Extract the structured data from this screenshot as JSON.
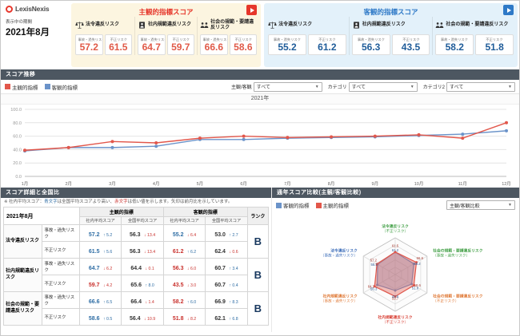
{
  "header": {
    "logo_text": "LexisNexis",
    "period_label": "表示中の期間",
    "period_value": "2021年8月"
  },
  "panels": {
    "subjective": {
      "title": "主観的指標スコア",
      "accent": "#e6362a",
      "bg": "#fcf5e0",
      "value_color": "#e05a48",
      "categories": [
        {
          "name": "法令違反リスク",
          "icon": "scale-icon",
          "scores": [
            {
              "label": "事故・過失リスク",
              "value": "57.2"
            },
            {
              "label": "不正リスク",
              "value": "61.5"
            }
          ]
        },
        {
          "name": "社内規範違反リスク",
          "icon": "id-badge-icon",
          "scores": [
            {
              "label": "事故・過失リスク",
              "value": "64.7"
            },
            {
              "label": "不正リスク",
              "value": "59.7"
            }
          ]
        },
        {
          "name": "社会の規範・要請違反リスク",
          "icon": "people-icon",
          "scores": [
            {
              "label": "事故・過失リスク",
              "value": "66.6"
            },
            {
              "label": "不正リスク",
              "value": "58.6"
            }
          ]
        }
      ]
    },
    "objective": {
      "title": "客観的指標スコア",
      "accent": "#2e79c7",
      "bg": "#e3f1fa",
      "value_color": "#1f5c99",
      "categories": [
        {
          "name": "法令違反リスク",
          "icon": "scale-icon",
          "scores": [
            {
              "label": "事故・過失リスク",
              "value": "55.2"
            },
            {
              "label": "不正リスク",
              "value": "61.2"
            }
          ]
        },
        {
          "name": "社内規範違反リスク",
          "icon": "id-badge-icon",
          "scores": [
            {
              "label": "事故・過失リスク",
              "value": "56.3"
            },
            {
              "label": "不正リスク",
              "value": "43.5"
            }
          ]
        },
        {
          "name": "社会の規範・要請違反リスク",
          "icon": "people-icon",
          "scores": [
            {
              "label": "事故・過失リスク",
              "value": "58.2"
            },
            {
              "label": "不正リスク",
              "value": "51.8"
            }
          ]
        }
      ]
    }
  },
  "trend": {
    "title": "スコア推移",
    "legend": [
      {
        "label": "主観的指標",
        "color": "#e2574b"
      },
      {
        "label": "客観的指標",
        "color": "#6b93c9"
      }
    ],
    "filters": [
      {
        "label": "主観/客観",
        "value": "すべて"
      },
      {
        "label": "カテゴリ",
        "value": "すべて"
      },
      {
        "label": "カテゴリ2",
        "value": "すべて"
      }
    ]
  },
  "chart_data": [
    {
      "type": "line",
      "title": "2021年",
      "categories": [
        "1月",
        "2月",
        "3月",
        "4月",
        "5月",
        "6月",
        "7月",
        "8月",
        "9月",
        "10月",
        "11月",
        "12月"
      ],
      "series": [
        {
          "name": "主観的指標",
          "color": "#e2574b",
          "values": [
            39,
            43,
            52,
            50,
            57,
            60,
            58,
            59,
            60,
            62,
            57,
            80
          ]
        },
        {
          "name": "客観的指標",
          "color": "#6b93c9",
          "values": [
            38,
            43,
            43,
            45,
            55,
            55,
            57,
            58,
            59,
            61,
            63,
            68
          ]
        }
      ],
      "ylim": [
        0,
        100
      ],
      "yticks": [
        0,
        20,
        40,
        60,
        80,
        100
      ],
      "xlabel": "",
      "ylabel": ""
    },
    {
      "type": "radar",
      "max": 100,
      "axes": [
        {
          "name": "法令違反リスク",
          "metric": "（不正リスク）",
          "color": "#43a047"
        },
        {
          "name": "社会の規範・要請違反リスク",
          "metric": "（事故・過失リスク）",
          "color": "#43a047"
        },
        {
          "name": "社会の規範・要請違反リスク",
          "metric": "（不正リスク）",
          "color": "#e07b39"
        },
        {
          "name": "社内規範違反リスク",
          "metric": "（不正リスク）",
          "color": "#d9453a"
        },
        {
          "name": "社内規範違反リスク",
          "metric": "（事故・過失リスク）",
          "color": "#e07b39"
        },
        {
          "name": "法令違反リスク",
          "metric": "（事故・過失リスク）",
          "color": "#3f6fba"
        }
      ],
      "series": [
        {
          "name": "主観的指標",
          "color": "#e2574b",
          "values": [
            61.5,
            66.6,
            58.6,
            59.7,
            64.7,
            57.2
          ]
        },
        {
          "name": "客観的指標",
          "color": "#6b93c9",
          "values": [
            61.2,
            58.2,
            51.8,
            43.5,
            56.3,
            55.2
          ]
        }
      ]
    }
  ],
  "details": {
    "title": "スコア詳細と全国比",
    "month": "2021年8月",
    "group_headers": [
      "主観的指標",
      "客観的指標"
    ],
    "sub_headers": [
      "社内平均スコア",
      "全国平均スコア",
      "社内平均スコア",
      "全国平均スコア"
    ],
    "rank_header": "ランク",
    "note_parts": [
      {
        "t": "※ 社内平均スコア：",
        "c": "#555"
      },
      {
        "t": "青文字",
        "c": "#2e6da4"
      },
      {
        "t": "は全国平均スコアより高い、",
        "c": "#555"
      },
      {
        "t": "赤文字",
        "c": "#c9302c"
      },
      {
        "t": "は低い値を示します。",
        "c": "#555"
      },
      {
        "t": "矢印は前月比を示しています。",
        "c": "#555"
      }
    ],
    "rows": [
      {
        "category": "法令違反リスク",
        "rank": "B",
        "metrics": [
          {
            "label": "事故・過失リスク",
            "cells": [
              {
                "v": "57.2",
                "vc": "blue",
                "dir": "up",
                "d": "5.2"
              },
              {
                "v": "56.3",
                "vc": "plain",
                "dir": "down",
                "d": "13.4"
              },
              {
                "v": "55.2",
                "vc": "blue",
                "dir": "down",
                "d": "6.4"
              },
              {
                "v": "53.0",
                "vc": "plain",
                "dir": "up",
                "d": "2.7"
              }
            ]
          },
          {
            "label": "不正リスク",
            "cells": [
              {
                "v": "61.5",
                "vc": "blue",
                "dir": "up",
                "d": "5.6"
              },
              {
                "v": "56.3",
                "vc": "plain",
                "dir": "down",
                "d": "13.4"
              },
              {
                "v": "61.2",
                "vc": "red",
                "dir": "up",
                "d": "6.2"
              },
              {
                "v": "62.4",
                "vc": "plain",
                "dir": "down",
                "d": "0.6"
              }
            ]
          }
        ]
      },
      {
        "category": "社内規範違反リスク",
        "rank": "B",
        "metrics": [
          {
            "label": "事故・過失リスク",
            "cells": [
              {
                "v": "64.7",
                "vc": "blue",
                "dir": "down",
                "d": "6.2"
              },
              {
                "v": "64.4",
                "vc": "plain",
                "dir": "down",
                "d": "0.1"
              },
              {
                "v": "56.3",
                "vc": "red",
                "dir": "down",
                "d": "6.0"
              },
              {
                "v": "60.7",
                "vc": "plain",
                "dir": "up",
                "d": "3.4"
              }
            ]
          },
          {
            "label": "不正リスク",
            "cells": [
              {
                "v": "59.7",
                "vc": "red",
                "dir": "down",
                "d": "4.2"
              },
              {
                "v": "65.6",
                "vc": "plain",
                "dir": "up",
                "d": "8.0"
              },
              {
                "v": "43.5",
                "vc": "red",
                "dir": "down",
                "d": "3.0"
              },
              {
                "v": "60.7",
                "vc": "plain",
                "dir": "up",
                "d": "0.4"
              }
            ]
          }
        ]
      },
      {
        "category": "社会の規範・要請違反リスク",
        "rank": "B",
        "metrics": [
          {
            "label": "事故・過失リスク",
            "cells": [
              {
                "v": "66.6",
                "vc": "blue",
                "dir": "up",
                "d": "6.5"
              },
              {
                "v": "66.4",
                "vc": "plain",
                "dir": "down",
                "d": "1.4"
              },
              {
                "v": "58.2",
                "vc": "red",
                "dir": "up",
                "d": "6.0"
              },
              {
                "v": "66.9",
                "vc": "plain",
                "dir": "up",
                "d": "8.3"
              }
            ]
          },
          {
            "label": "不正リスク",
            "cells": [
              {
                "v": "58.6",
                "vc": "blue",
                "dir": "up",
                "d": "0.5"
              },
              {
                "v": "56.4",
                "vc": "plain",
                "dir": "down",
                "d": "10.9"
              },
              {
                "v": "51.8",
                "vc": "red",
                "dir": "down",
                "d": "8.2"
              },
              {
                "v": "62.1",
                "vc": "plain",
                "dir": "up",
                "d": "6.8"
              }
            ]
          }
        ]
      }
    ]
  },
  "comparison": {
    "title": "通年スコア比較(主観/客観比較)",
    "legend": [
      {
        "label": "客観的指標",
        "color": "#6b93c9"
      },
      {
        "label": "主観的指標",
        "color": "#e2574b"
      }
    ],
    "filter_value": "主観/客観比較"
  }
}
